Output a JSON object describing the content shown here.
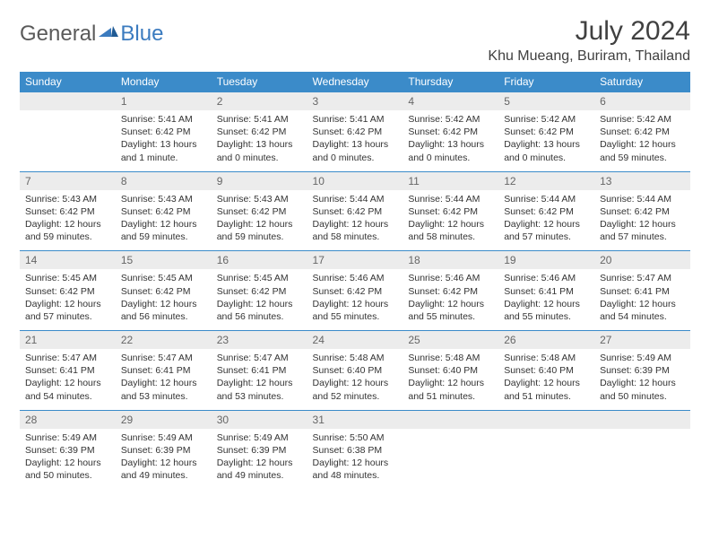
{
  "logo": {
    "general": "General",
    "blue": "Blue"
  },
  "title": "July 2024",
  "location": "Khu Mueang, Buriram, Thailand",
  "colors": {
    "header_bg": "#3b8bc9",
    "header_text": "#ffffff",
    "daynum_bg": "#ececec",
    "border": "#3b8bc9",
    "text": "#333333",
    "logo_gray": "#5a5a5a",
    "logo_blue": "#3b7bbf"
  },
  "weekdays": [
    "Sunday",
    "Monday",
    "Tuesday",
    "Wednesday",
    "Thursday",
    "Friday",
    "Saturday"
  ],
  "weeks": [
    {
      "nums": [
        "",
        "1",
        "2",
        "3",
        "4",
        "5",
        "6"
      ],
      "cells": [
        null,
        {
          "sunrise": "Sunrise: 5:41 AM",
          "sunset": "Sunset: 6:42 PM",
          "daylight": "Daylight: 13 hours and 1 minute."
        },
        {
          "sunrise": "Sunrise: 5:41 AM",
          "sunset": "Sunset: 6:42 PM",
          "daylight": "Daylight: 13 hours and 0 minutes."
        },
        {
          "sunrise": "Sunrise: 5:41 AM",
          "sunset": "Sunset: 6:42 PM",
          "daylight": "Daylight: 13 hours and 0 minutes."
        },
        {
          "sunrise": "Sunrise: 5:42 AM",
          "sunset": "Sunset: 6:42 PM",
          "daylight": "Daylight: 13 hours and 0 minutes."
        },
        {
          "sunrise": "Sunrise: 5:42 AM",
          "sunset": "Sunset: 6:42 PM",
          "daylight": "Daylight: 13 hours and 0 minutes."
        },
        {
          "sunrise": "Sunrise: 5:42 AM",
          "sunset": "Sunset: 6:42 PM",
          "daylight": "Daylight: 12 hours and 59 minutes."
        }
      ]
    },
    {
      "nums": [
        "7",
        "8",
        "9",
        "10",
        "11",
        "12",
        "13"
      ],
      "cells": [
        {
          "sunrise": "Sunrise: 5:43 AM",
          "sunset": "Sunset: 6:42 PM",
          "daylight": "Daylight: 12 hours and 59 minutes."
        },
        {
          "sunrise": "Sunrise: 5:43 AM",
          "sunset": "Sunset: 6:42 PM",
          "daylight": "Daylight: 12 hours and 59 minutes."
        },
        {
          "sunrise": "Sunrise: 5:43 AM",
          "sunset": "Sunset: 6:42 PM",
          "daylight": "Daylight: 12 hours and 59 minutes."
        },
        {
          "sunrise": "Sunrise: 5:44 AM",
          "sunset": "Sunset: 6:42 PM",
          "daylight": "Daylight: 12 hours and 58 minutes."
        },
        {
          "sunrise": "Sunrise: 5:44 AM",
          "sunset": "Sunset: 6:42 PM",
          "daylight": "Daylight: 12 hours and 58 minutes."
        },
        {
          "sunrise": "Sunrise: 5:44 AM",
          "sunset": "Sunset: 6:42 PM",
          "daylight": "Daylight: 12 hours and 57 minutes."
        },
        {
          "sunrise": "Sunrise: 5:44 AM",
          "sunset": "Sunset: 6:42 PM",
          "daylight": "Daylight: 12 hours and 57 minutes."
        }
      ]
    },
    {
      "nums": [
        "14",
        "15",
        "16",
        "17",
        "18",
        "19",
        "20"
      ],
      "cells": [
        {
          "sunrise": "Sunrise: 5:45 AM",
          "sunset": "Sunset: 6:42 PM",
          "daylight": "Daylight: 12 hours and 57 minutes."
        },
        {
          "sunrise": "Sunrise: 5:45 AM",
          "sunset": "Sunset: 6:42 PM",
          "daylight": "Daylight: 12 hours and 56 minutes."
        },
        {
          "sunrise": "Sunrise: 5:45 AM",
          "sunset": "Sunset: 6:42 PM",
          "daylight": "Daylight: 12 hours and 56 minutes."
        },
        {
          "sunrise": "Sunrise: 5:46 AM",
          "sunset": "Sunset: 6:42 PM",
          "daylight": "Daylight: 12 hours and 55 minutes."
        },
        {
          "sunrise": "Sunrise: 5:46 AM",
          "sunset": "Sunset: 6:42 PM",
          "daylight": "Daylight: 12 hours and 55 minutes."
        },
        {
          "sunrise": "Sunrise: 5:46 AM",
          "sunset": "Sunset: 6:41 PM",
          "daylight": "Daylight: 12 hours and 55 minutes."
        },
        {
          "sunrise": "Sunrise: 5:47 AM",
          "sunset": "Sunset: 6:41 PM",
          "daylight": "Daylight: 12 hours and 54 minutes."
        }
      ]
    },
    {
      "nums": [
        "21",
        "22",
        "23",
        "24",
        "25",
        "26",
        "27"
      ],
      "cells": [
        {
          "sunrise": "Sunrise: 5:47 AM",
          "sunset": "Sunset: 6:41 PM",
          "daylight": "Daylight: 12 hours and 54 minutes."
        },
        {
          "sunrise": "Sunrise: 5:47 AM",
          "sunset": "Sunset: 6:41 PM",
          "daylight": "Daylight: 12 hours and 53 minutes."
        },
        {
          "sunrise": "Sunrise: 5:47 AM",
          "sunset": "Sunset: 6:41 PM",
          "daylight": "Daylight: 12 hours and 53 minutes."
        },
        {
          "sunrise": "Sunrise: 5:48 AM",
          "sunset": "Sunset: 6:40 PM",
          "daylight": "Daylight: 12 hours and 52 minutes."
        },
        {
          "sunrise": "Sunrise: 5:48 AM",
          "sunset": "Sunset: 6:40 PM",
          "daylight": "Daylight: 12 hours and 51 minutes."
        },
        {
          "sunrise": "Sunrise: 5:48 AM",
          "sunset": "Sunset: 6:40 PM",
          "daylight": "Daylight: 12 hours and 51 minutes."
        },
        {
          "sunrise": "Sunrise: 5:49 AM",
          "sunset": "Sunset: 6:39 PM",
          "daylight": "Daylight: 12 hours and 50 minutes."
        }
      ]
    },
    {
      "nums": [
        "28",
        "29",
        "30",
        "31",
        "",
        "",
        ""
      ],
      "cells": [
        {
          "sunrise": "Sunrise: 5:49 AM",
          "sunset": "Sunset: 6:39 PM",
          "daylight": "Daylight: 12 hours and 50 minutes."
        },
        {
          "sunrise": "Sunrise: 5:49 AM",
          "sunset": "Sunset: 6:39 PM",
          "daylight": "Daylight: 12 hours and 49 minutes."
        },
        {
          "sunrise": "Sunrise: 5:49 AM",
          "sunset": "Sunset: 6:39 PM",
          "daylight": "Daylight: 12 hours and 49 minutes."
        },
        {
          "sunrise": "Sunrise: 5:50 AM",
          "sunset": "Sunset: 6:38 PM",
          "daylight": "Daylight: 12 hours and 48 minutes."
        },
        null,
        null,
        null
      ]
    }
  ]
}
